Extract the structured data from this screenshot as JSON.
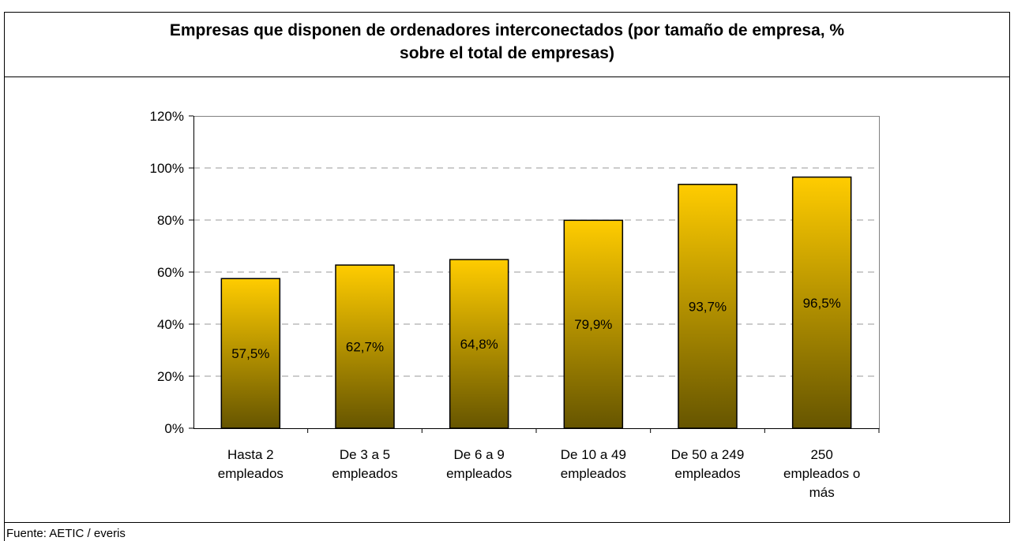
{
  "chart_data": {
    "type": "bar",
    "title": "Empresas que disponen de ordenadores interconectados (por tamaño de empresa, % sobre el total de empresas)",
    "categories": [
      "Hasta 2\nempleados",
      "De 3 a 5\nempleados",
      "De 6 a 9\nempleados",
      "De 10 a 49\nempleados",
      "De 50 a 249\nempleados",
      "250\nempleados o\nmás"
    ],
    "values": [
      57.5,
      62.7,
      64.8,
      79.9,
      93.7,
      96.5
    ],
    "value_labels": [
      "57,5%",
      "62,7%",
      "64,8%",
      "79,9%",
      "93,7%",
      "96,5%"
    ],
    "color": "#ffcc00",
    "ylim": [
      0,
      120
    ],
    "yticks": [
      {
        "value": 0,
        "label": "0%"
      },
      {
        "value": 20,
        "label": "20%"
      },
      {
        "value": 40,
        "label": "40%"
      },
      {
        "value": 60,
        "label": "60%"
      },
      {
        "value": 80,
        "label": "80%"
      },
      {
        "value": 100,
        "label": "100%"
      },
      {
        "value": 120,
        "label": "120%"
      }
    ],
    "grid": true,
    "source": "Fuente: AETIC / everis"
  }
}
